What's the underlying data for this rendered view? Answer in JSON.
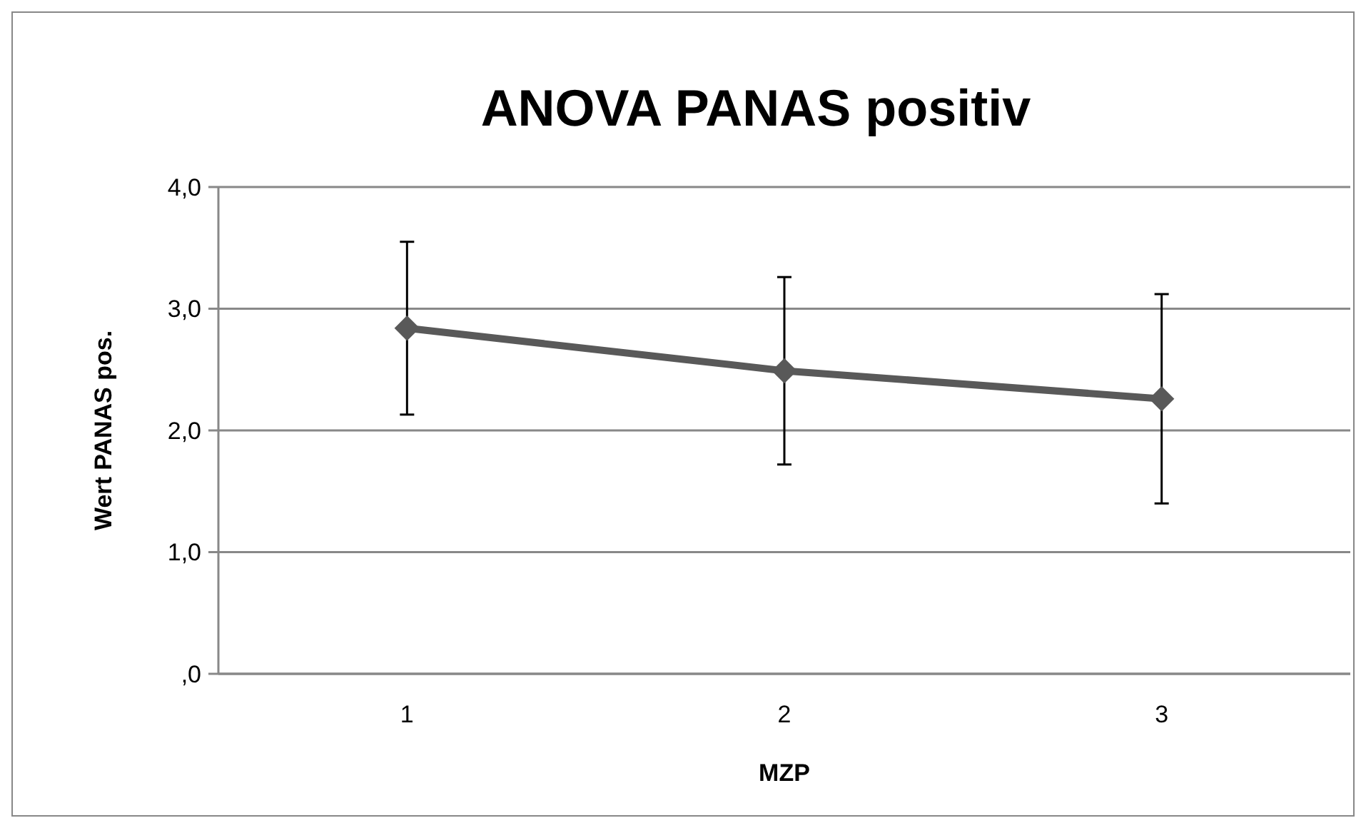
{
  "chart_data": {
    "type": "line",
    "title": "ANOVA PANAS positiv",
    "xlabel": "MZP",
    "ylabel": "Wert PANAS pos.",
    "categories": [
      "1",
      "2",
      "3"
    ],
    "series": [
      {
        "color": "#595959",
        "values": [
          2.84,
          2.49,
          2.26
        ],
        "errors": [
          0.71,
          0.77,
          0.86
        ]
      }
    ],
    "ylim": [
      0,
      4
    ],
    "yticks": [
      {
        "value": 0,
        "label": ",0"
      },
      {
        "value": 1,
        "label": "1,0"
      },
      {
        "value": 2,
        "label": "2,0"
      },
      {
        "value": 3,
        "label": "3,0"
      },
      {
        "value": 4,
        "label": "4,0"
      }
    ],
    "grid": "y",
    "marker": "diamond",
    "line_style": "solid"
  }
}
